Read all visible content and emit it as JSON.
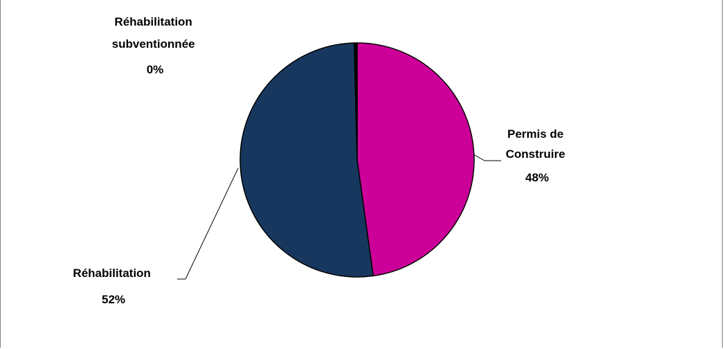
{
  "chart_data": {
    "type": "pie",
    "title": "",
    "slices": [
      {
        "label_lines": [
          "Permis de",
          "Construire"
        ],
        "value_label": "48%",
        "value": 48,
        "color": "#cc0099"
      },
      {
        "label_lines": [
          "Réhabilitation"
        ],
        "value_label": "52%",
        "value": 52,
        "color": "#17375e"
      },
      {
        "label_lines": [
          "Réhabilitation",
          "subventionnée"
        ],
        "value_label": "0%",
        "value": 0.4,
        "color": "#000000"
      }
    ],
    "legend": "none",
    "data_labels": "outside with leader lines"
  }
}
